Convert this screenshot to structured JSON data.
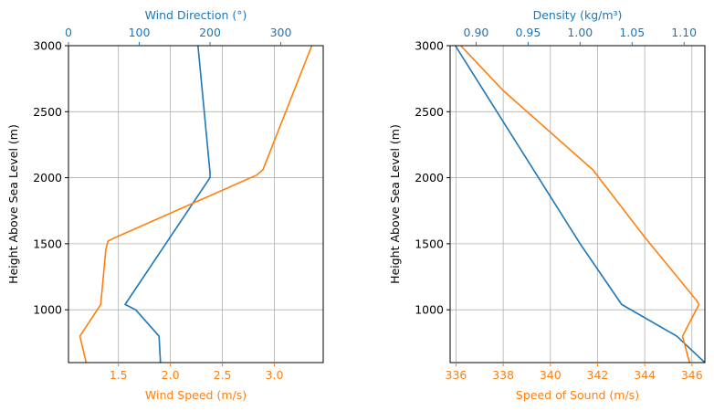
{
  "colors": {
    "blue": "#1f77b4",
    "orange": "#ff7f0e",
    "grid": "#b0b0b0",
    "axis": "#000000"
  },
  "chart_data": [
    {
      "type": "line",
      "ylabel": "Height Above Sea Level (m)",
      "ylim": [
        600,
        3000
      ],
      "yticks": [
        1000,
        1500,
        2000,
        2500,
        3000
      ],
      "bottom_axis": {
        "label": "Wind Speed (m/s)",
        "lim": [
          1.02,
          3.47
        ],
        "ticks": [
          1.5,
          2.0,
          2.5,
          3.0
        ],
        "tick_labels": [
          "1.5",
          "2.0",
          "2.5",
          "3.0"
        ],
        "color": "orange"
      },
      "top_axis": {
        "label": "Wind Direction (°)",
        "lim": [
          0,
          360
        ],
        "ticks": [
          0,
          100,
          200,
          300
        ],
        "tick_labels": [
          "0",
          "100",
          "200",
          "300"
        ],
        "color": "blue"
      },
      "grid": true,
      "series": [
        {
          "color": "blue",
          "axis": "top",
          "points": [
            [
              130,
              600
            ],
            [
              128,
              800
            ],
            [
              95,
              1000
            ],
            [
              80,
              1040
            ],
            [
              200,
              2000
            ],
            [
              200,
              2040
            ],
            [
              183,
              3000
            ]
          ]
        },
        {
          "color": "orange",
          "axis": "bottom",
          "points": [
            [
              1.19,
              600
            ],
            [
              1.13,
              800
            ],
            [
              1.33,
              1040
            ],
            [
              1.38,
              1460
            ],
            [
              1.4,
              1520
            ],
            [
              1.45,
              1540
            ],
            [
              2.83,
              2020
            ],
            [
              2.89,
              2060
            ],
            [
              3.36,
              3000
            ]
          ]
        }
      ]
    },
    {
      "type": "line",
      "ylabel": "Height Above Sea Level (m)",
      "ylim": [
        600,
        3000
      ],
      "yticks": [
        1000,
        1500,
        2000,
        2500,
        3000
      ],
      "bottom_axis": {
        "label": "Speed of Sound (m/s)",
        "lim": [
          335.75,
          346.55
        ],
        "ticks": [
          336,
          338,
          340,
          342,
          344,
          346
        ],
        "tick_labels": [
          "336",
          "338",
          "340",
          "342",
          "344",
          "346"
        ],
        "color": "orange"
      },
      "top_axis": {
        "label": "Density (kg/m³)",
        "lim": [
          0.875,
          1.12
        ],
        "ticks": [
          0.9,
          0.95,
          1.0,
          1.05,
          1.1
        ],
        "tick_labels": [
          "0.90",
          "0.95",
          "1.00",
          "1.05",
          "1.10"
        ],
        "color": "blue"
      },
      "grid": true,
      "series": [
        {
          "color": "blue",
          "axis": "top",
          "points": [
            [
              1.12,
              600
            ],
            [
              1.093,
              800
            ],
            [
              1.04,
              1040
            ],
            [
              1.0,
              1500
            ],
            [
              0.96,
              2000
            ],
            [
              0.92,
              2500
            ],
            [
              0.88,
              3000
            ]
          ]
        },
        {
          "color": "orange",
          "axis": "bottom",
          "points": [
            [
              345.9,
              600
            ],
            [
              345.6,
              800
            ],
            [
              346.3,
              1040
            ],
            [
              346.2,
              1070
            ],
            [
              344.0,
              1550
            ],
            [
              341.8,
              2060
            ],
            [
              338.0,
              2660
            ],
            [
              336.2,
              3000
            ]
          ]
        }
      ]
    }
  ]
}
